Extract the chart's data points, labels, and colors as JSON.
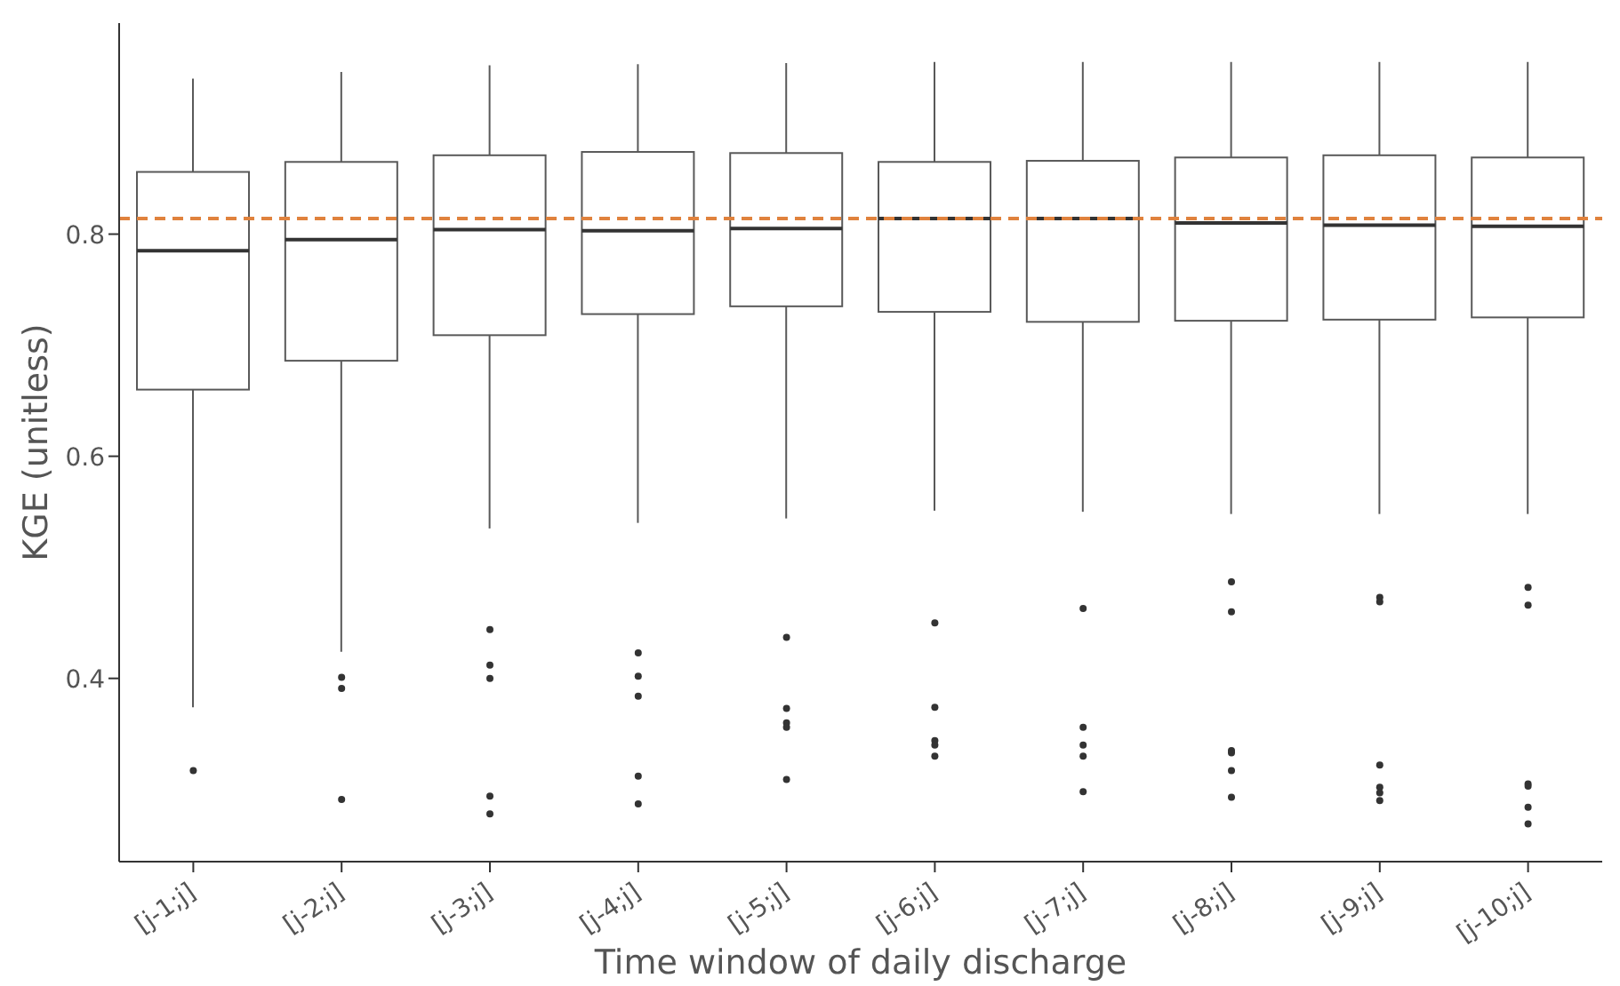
{
  "chart_data": {
    "type": "box",
    "xlabel": "Time window of daily discharge",
    "ylabel": "KGE (unitless)",
    "categories": [
      "[j-1;j]",
      "[j-2;j]",
      "[j-3;j]",
      "[j-4;j]",
      "[j-5;j]",
      "[j-6;j]",
      "[j-7;j]",
      "[j-8;j]",
      "[j-9;j]",
      "[j-10;j]"
    ],
    "boxes": [
      {
        "low": 0.374,
        "q1": 0.66,
        "median": 0.785,
        "q3": 0.856,
        "high": 0.94,
        "outliers": [
          0.317
        ]
      },
      {
        "low": 0.424,
        "q1": 0.686,
        "median": 0.795,
        "q3": 0.865,
        "high": 0.946,
        "outliers": [
          0.401,
          0.391,
          0.291
        ]
      },
      {
        "low": 0.535,
        "q1": 0.709,
        "median": 0.804,
        "q3": 0.871,
        "high": 0.952,
        "outliers": [
          0.444,
          0.412,
          0.4,
          0.294,
          0.278
        ]
      },
      {
        "low": 0.54,
        "q1": 0.728,
        "median": 0.803,
        "q3": 0.874,
        "high": 0.953,
        "outliers": [
          0.423,
          0.402,
          0.384,
          0.312,
          0.287
        ]
      },
      {
        "low": 0.544,
        "q1": 0.735,
        "median": 0.805,
        "q3": 0.873,
        "high": 0.954,
        "outliers": [
          0.437,
          0.373,
          0.36,
          0.356,
          0.309
        ]
      },
      {
        "low": 0.551,
        "q1": 0.73,
        "median": 0.814,
        "q3": 0.865,
        "high": 0.955,
        "outliers": [
          0.45,
          0.374,
          0.344,
          0.34,
          0.33
        ]
      },
      {
        "low": 0.55,
        "q1": 0.721,
        "median": 0.814,
        "q3": 0.866,
        "high": 0.955,
        "outliers": [
          0.463,
          0.356,
          0.34,
          0.33,
          0.298
        ]
      },
      {
        "low": 0.548,
        "q1": 0.722,
        "median": 0.81,
        "q3": 0.869,
        "high": 0.955,
        "outliers": [
          0.487,
          0.46,
          0.335,
          0.333,
          0.317,
          0.293
        ]
      },
      {
        "low": 0.548,
        "q1": 0.723,
        "median": 0.808,
        "q3": 0.871,
        "high": 0.955,
        "outliers": [
          0.473,
          0.469,
          0.322,
          0.302,
          0.297,
          0.29
        ]
      },
      {
        "low": 0.548,
        "q1": 0.725,
        "median": 0.807,
        "q3": 0.869,
        "high": 0.955,
        "outliers": [
          0.482,
          0.466,
          0.305,
          0.303,
          0.284,
          0.269
        ]
      }
    ],
    "color": "#595959",
    "ylim": [
      0.235,
      0.99
    ],
    "yticks": [
      0.4,
      0.6,
      0.8
    ],
    "grid": false,
    "legend": false,
    "ref_lines": [
      {
        "axis": "y",
        "value": 0.814,
        "color": "#e0823d",
        "line_style": "dashed"
      }
    ]
  }
}
